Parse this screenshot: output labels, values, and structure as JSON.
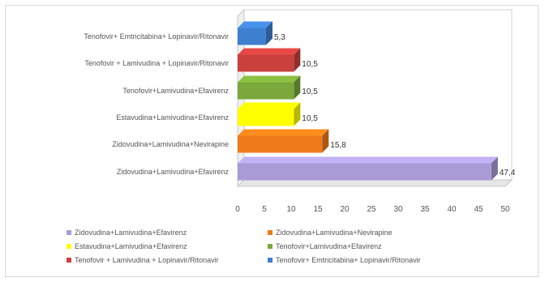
{
  "chart_data": {
    "type": "bar",
    "orientation": "horizontal",
    "style": "3d",
    "categories": [
      "Zidovudina+Lamivudina+Efavirenz",
      "Zidovudina+Lamivudina+Nevirapine",
      "Estavudina+Lamivudina+Efavirenz",
      "Tenofovir+Lamivudina+Efavirenz",
      "Tenofovir + Lamivudina + Lopinavir/Ritonavir",
      "Tenofovir+ Emtricitabina+ Lopinavir/Ritonavir"
    ],
    "values": [
      47.4,
      15.8,
      10.5,
      10.5,
      10.5,
      5.3
    ],
    "value_labels": [
      "47,4",
      "15,8",
      "10,5",
      "10,5",
      "10,5",
      "5,3"
    ],
    "colors": [
      "#a99bd6",
      "#ef7a1a",
      "#ffff00",
      "#7aa83a",
      "#c9403d",
      "#3f7fcf"
    ],
    "xlim": [
      0,
      50
    ],
    "xticks": [
      0,
      5,
      10,
      15,
      20,
      25,
      30,
      35,
      40,
      45,
      50
    ],
    "grid": false,
    "legend": {
      "placement": "bottom",
      "entries": [
        "Zidovudina+Lamivudina+Efavirenz",
        "Zidovudina+Lamivudina+Nevirapine",
        "Estavudina+Lamivudina+Efavirenz",
        "Tenofovir+Lamivudina+Efavirenz",
        "Tenofovir + Lamivudina + Lopinavir/Ritonavir",
        "Tenofovir+ Emtricitabina+ Lopinavir/Ritonavir"
      ]
    }
  }
}
